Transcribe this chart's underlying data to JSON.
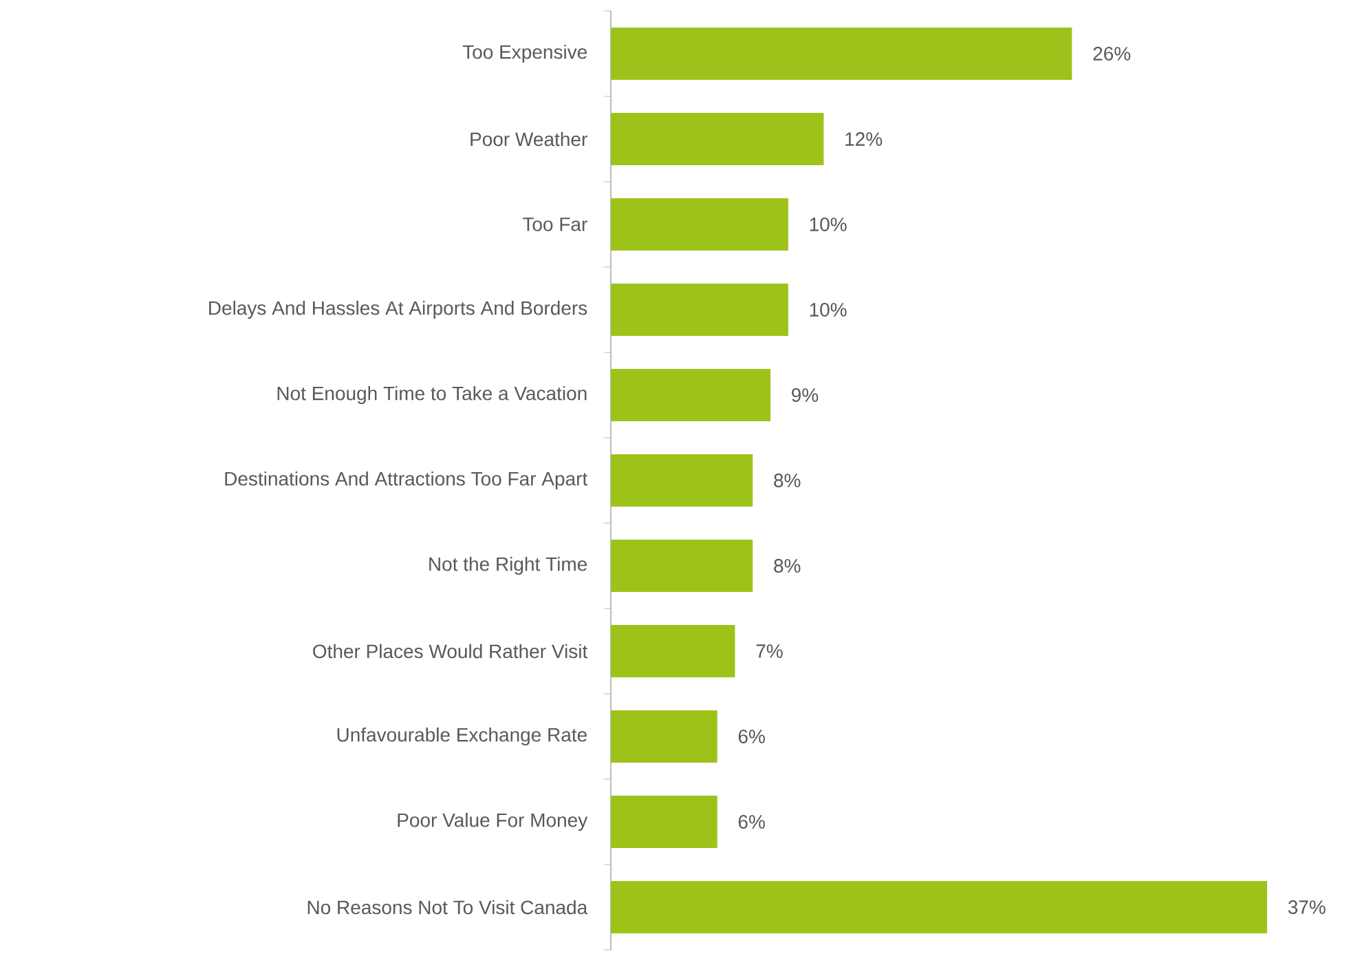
{
  "chart_data": {
    "type": "bar",
    "orientation": "horizontal",
    "color": "#9dc31a",
    "categories": [
      "Too Expensive",
      "Poor Weather",
      "Too Far",
      "Delays And Hassles At Airports And Borders",
      "Not Enough Time to Take a Vacation",
      "Destinations And Attractions Too Far Apart",
      "Not the Right Time",
      "Other Places Would Rather Visit",
      "Unfavourable Exchange Rate",
      "Poor Value For Money",
      "No Reasons Not To Visit Canada"
    ],
    "values": [
      26,
      12,
      10,
      10,
      9,
      8,
      8,
      7,
      6,
      6,
      37
    ],
    "value_labels": [
      "26%",
      "12%",
      "10%",
      "10%",
      "9%",
      "8%",
      "8%",
      "7%",
      "6%",
      "6%",
      "37%"
    ]
  }
}
